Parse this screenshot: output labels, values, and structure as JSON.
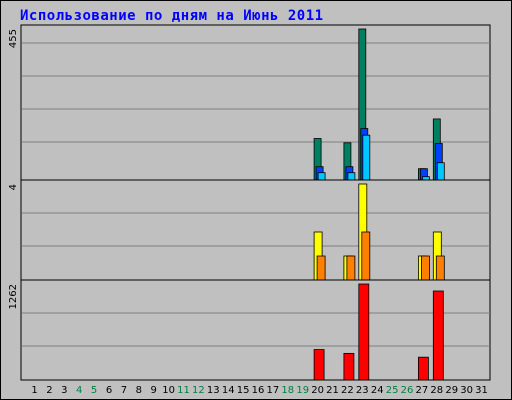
{
  "title": "Использование по дням на Июнь 2011",
  "colors": {
    "background": "#c0c0c0",
    "grid": "#808080",
    "title": "#0000ff",
    "weekday_label": "#000000",
    "weekend_label": "#008040"
  },
  "chart_data": [
    {
      "type": "bar",
      "title": "Использование по дням на Июнь 2011",
      "x": [
        1,
        2,
        3,
        4,
        5,
        6,
        7,
        8,
        9,
        10,
        11,
        12,
        13,
        14,
        15,
        16,
        17,
        18,
        19,
        20,
        21,
        22,
        23,
        24,
        25,
        26,
        27,
        28,
        29,
        30,
        31
      ],
      "weekend_days": [
        4,
        5,
        11,
        12,
        18,
        19,
        25,
        26
      ],
      "ymax_label": "455",
      "ylim": [
        0,
        455
      ],
      "grid": true,
      "series": [
        {
          "color": "#008060",
          "points": [
            [
              20,
              125
            ],
            [
              22,
              112
            ],
            [
              23,
              455
            ],
            [
              27,
              34
            ],
            [
              28,
              184
            ]
          ]
        },
        {
          "color": "#0040ff",
          "points": [
            [
              20,
              40
            ],
            [
              22,
              40
            ],
            [
              23,
              155
            ],
            [
              27,
              34
            ],
            [
              28,
              110
            ]
          ]
        },
        {
          "color": "#00c8ff",
          "points": [
            [
              20,
              22
            ],
            [
              22,
              22
            ],
            [
              23,
              135
            ],
            [
              27,
              10
            ],
            [
              28,
              52
            ]
          ]
        }
      ]
    },
    {
      "type": "bar",
      "ymax_label": "4",
      "ylim": [
        0,
        4
      ],
      "grid": true,
      "series": [
        {
          "color": "#ffff00",
          "points": [
            [
              20,
              2
            ],
            [
              22,
              1
            ],
            [
              23,
              4
            ],
            [
              27,
              1
            ],
            [
              28,
              2
            ]
          ]
        },
        {
          "color": "#ff8000",
          "points": [
            [
              20,
              1
            ],
            [
              22,
              1
            ],
            [
              23,
              2
            ],
            [
              27,
              1
            ],
            [
              28,
              1
            ]
          ]
        }
      ]
    },
    {
      "type": "bar",
      "ymax_label": "1262",
      "ylim": [
        0,
        1262
      ],
      "grid": true,
      "series": [
        {
          "color": "#ff0000",
          "points": [
            [
              20,
              400
            ],
            [
              22,
              350
            ],
            [
              23,
              1262
            ],
            [
              27,
              300
            ],
            [
              28,
              1170
            ]
          ]
        }
      ]
    }
  ]
}
